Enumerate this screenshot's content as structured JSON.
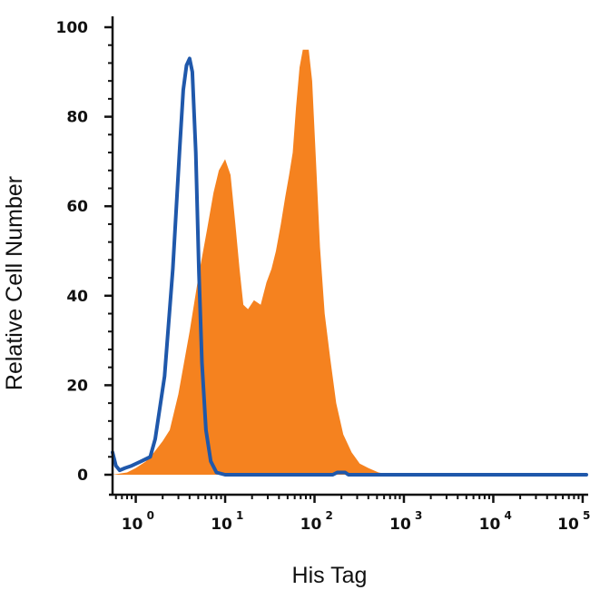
{
  "chart_data": {
    "type": "area",
    "xlabel": "His Tag",
    "ylabel": "Relative Cell Number",
    "xscale": "log",
    "xlim": [
      0.55,
      110000
    ],
    "ylim": [
      0,
      100
    ],
    "yticks": [
      "0",
      "20",
      "40",
      "60",
      "80",
      "100"
    ],
    "xticks": [
      {
        "base": "10",
        "exp": "0",
        "value": 1
      },
      {
        "base": "10",
        "exp": "1",
        "value": 10
      },
      {
        "base": "10",
        "exp": "2",
        "value": 100
      },
      {
        "base": "10",
        "exp": "3",
        "value": 1000
      },
      {
        "base": "10",
        "exp": "4",
        "value": 10000
      },
      {
        "base": "10",
        "exp": "5",
        "value": 100000
      }
    ],
    "series": [
      {
        "style": "filled",
        "color": "#F5821F",
        "points": [
          [
            0.55,
            0
          ],
          [
            0.8,
            0.5
          ],
          [
            1.0,
            1.5
          ],
          [
            1.3,
            3
          ],
          [
            1.6,
            5
          ],
          [
            2.0,
            7.5
          ],
          [
            2.4,
            10
          ],
          [
            3.0,
            18
          ],
          [
            4.0,
            32
          ],
          [
            5.0,
            44
          ],
          [
            6.3,
            55
          ],
          [
            7.4,
            63
          ],
          [
            8.5,
            68
          ],
          [
            10.0,
            70.5
          ],
          [
            11.5,
            67
          ],
          [
            13.0,
            56
          ],
          [
            14.5,
            46
          ],
          [
            16.0,
            38
          ],
          [
            18.0,
            37
          ],
          [
            21.0,
            39
          ],
          [
            25.0,
            38
          ],
          [
            29.0,
            43
          ],
          [
            33.0,
            46
          ],
          [
            37.0,
            50
          ],
          [
            42.0,
            56
          ],
          [
            47.0,
            62
          ],
          [
            52.0,
            67
          ],
          [
            57.0,
            72
          ],
          [
            62.0,
            82
          ],
          [
            68.0,
            91
          ],
          [
            74.0,
            95
          ],
          [
            86.0,
            95
          ],
          [
            94.0,
            88
          ],
          [
            105.0,
            68
          ],
          [
            115.0,
            51
          ],
          [
            130.0,
            36
          ],
          [
            150.0,
            26
          ],
          [
            175.0,
            16
          ],
          [
            210.0,
            9
          ],
          [
            260.0,
            5
          ],
          [
            320.0,
            2.5
          ],
          [
            400.0,
            1.5
          ],
          [
            520.0,
            0.5
          ],
          [
            700.0,
            0
          ],
          [
            110000,
            0
          ]
        ]
      },
      {
        "style": "line",
        "color": "#1F58AB",
        "points": [
          [
            0.55,
            5
          ],
          [
            0.6,
            2
          ],
          [
            0.66,
            1
          ],
          [
            0.76,
            1.5
          ],
          [
            0.9,
            2
          ],
          [
            1.15,
            3
          ],
          [
            1.45,
            4
          ],
          [
            1.65,
            8
          ],
          [
            2.1,
            22
          ],
          [
            2.6,
            46
          ],
          [
            3.1,
            73
          ],
          [
            3.4,
            86
          ],
          [
            3.7,
            91.5
          ],
          [
            4.0,
            93
          ],
          [
            4.3,
            90
          ],
          [
            4.7,
            72
          ],
          [
            5.1,
            45
          ],
          [
            5.5,
            25
          ],
          [
            6.1,
            10
          ],
          [
            6.9,
            3
          ],
          [
            8.0,
            0.5
          ],
          [
            10.0,
            0
          ],
          [
            160.0,
            0
          ],
          [
            180.0,
            0.5
          ],
          [
            220.0,
            0.5
          ],
          [
            240.0,
            0
          ],
          [
            110000,
            0
          ]
        ]
      }
    ]
  }
}
